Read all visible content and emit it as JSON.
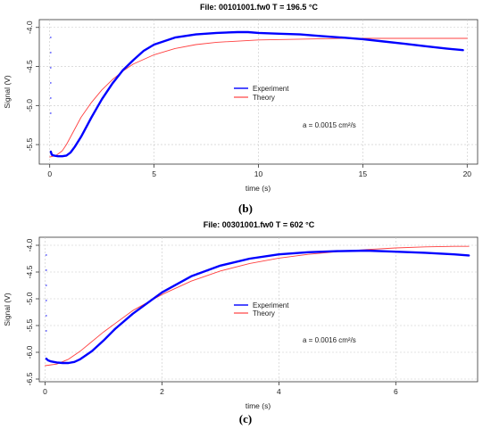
{
  "chart_data": [
    {
      "type": "line",
      "title": "File:  00101001.fw0  T =  196.5 °C",
      "xlabel": "time (s)",
      "ylabel": "Signal (V)",
      "xlim": [
        -0.5,
        20.5
      ],
      "ylim": [
        -5.75,
        -3.9
      ],
      "xticks": [
        0,
        5,
        10,
        15,
        20
      ],
      "xtick_labels": [
        "0",
        "5",
        "10",
        "15",
        "20"
      ],
      "yticks": [
        -4.0,
        -4.5,
        -5.0,
        -5.5
      ],
      "ytick_labels": [
        "-4.0",
        "-4.5",
        "-5.0",
        "-5.5"
      ],
      "grid": true,
      "legend_position": "center",
      "annotation": "a =  0.0015 cm²/s",
      "caption": "(b)",
      "series": [
        {
          "name": "Experiment",
          "color": "#0000ff",
          "x": [
            0.05,
            0.1,
            0.2,
            0.4,
            0.6,
            0.8,
            1.0,
            1.2,
            1.5,
            2.0,
            2.5,
            3.0,
            3.5,
            4.0,
            4.5,
            5.0,
            6.0,
            7.0,
            8.0,
            9.0,
            9.5,
            10.0,
            11.0,
            12.0,
            13.0,
            14.0,
            15.0,
            16.0,
            17.0,
            18.0,
            19.0,
            19.8
          ],
          "y": [
            -5.59,
            -5.63,
            -5.64,
            -5.65,
            -5.65,
            -5.64,
            -5.6,
            -5.53,
            -5.4,
            -5.15,
            -4.92,
            -4.72,
            -4.55,
            -4.42,
            -4.3,
            -4.22,
            -4.13,
            -4.09,
            -4.07,
            -4.06,
            -4.06,
            -4.07,
            -4.08,
            -4.09,
            -4.11,
            -4.13,
            -4.15,
            -4.18,
            -4.21,
            -4.24,
            -4.27,
            -4.29
          ]
        },
        {
          "name": "Theory",
          "color": "#ff4040",
          "x": [
            0.0,
            0.3,
            0.6,
            0.8,
            1.0,
            1.5,
            2.0,
            2.5,
            3.0,
            3.5,
            4.0,
            5.0,
            6.0,
            7.0,
            8.0,
            10.0,
            12.0,
            14.0,
            16.0,
            18.0,
            20.0
          ],
          "y": [
            -5.66,
            -5.64,
            -5.58,
            -5.5,
            -5.4,
            -5.15,
            -4.96,
            -4.8,
            -4.67,
            -4.56,
            -4.47,
            -4.35,
            -4.27,
            -4.22,
            -4.19,
            -4.16,
            -4.15,
            -4.14,
            -4.14,
            -4.14,
            -4.14
          ]
        }
      ]
    },
    {
      "type": "line",
      "title": "File:  00301001.fw0  T =  602 °C",
      "xlabel": "time (s)",
      "ylabel": "Signal (V)",
      "xlim": [
        -0.1,
        7.4
      ],
      "ylim": [
        -6.55,
        -3.85
      ],
      "xticks": [
        0,
        2,
        4,
        6
      ],
      "xtick_labels": [
        "0",
        "2",
        "4",
        "6"
      ],
      "yticks": [
        -4.0,
        -4.5,
        -5.0,
        -5.5,
        -6.0,
        -6.5
      ],
      "ytick_labels": [
        "-4.0",
        "-4.5",
        "-5.0",
        "-5.5",
        "-6.0",
        "-6.5"
      ],
      "grid": true,
      "legend_position": "center",
      "annotation": "a =  0.0016 cm²/s",
      "caption": "(c)",
      "series": [
        {
          "name": "Experiment",
          "color": "#0000ff",
          "x": [
            0.02,
            0.05,
            0.1,
            0.2,
            0.3,
            0.4,
            0.5,
            0.6,
            0.8,
            1.0,
            1.2,
            1.5,
            2.0,
            2.5,
            3.0,
            3.5,
            4.0,
            4.5,
            5.0,
            5.5,
            6.0,
            6.5,
            7.0,
            7.25
          ],
          "y": [
            -6.12,
            -6.15,
            -6.17,
            -6.19,
            -6.2,
            -6.2,
            -6.18,
            -6.13,
            -5.98,
            -5.78,
            -5.56,
            -5.28,
            -4.88,
            -4.58,
            -4.38,
            -4.25,
            -4.17,
            -4.13,
            -4.11,
            -4.1,
            -4.12,
            -4.14,
            -4.17,
            -4.19
          ]
        },
        {
          "name": "Theory",
          "color": "#ff4040",
          "x": [
            0.0,
            0.2,
            0.4,
            0.6,
            0.8,
            1.0,
            1.5,
            2.0,
            2.5,
            3.0,
            3.5,
            4.0,
            4.5,
            5.0,
            5.5,
            6.0,
            6.5,
            7.0,
            7.25
          ],
          "y": [
            -6.25,
            -6.22,
            -6.13,
            -5.98,
            -5.8,
            -5.62,
            -5.22,
            -4.92,
            -4.67,
            -4.48,
            -4.34,
            -4.24,
            -4.17,
            -4.12,
            -4.08,
            -4.05,
            -4.03,
            -4.02,
            -4.02
          ]
        }
      ]
    }
  ]
}
